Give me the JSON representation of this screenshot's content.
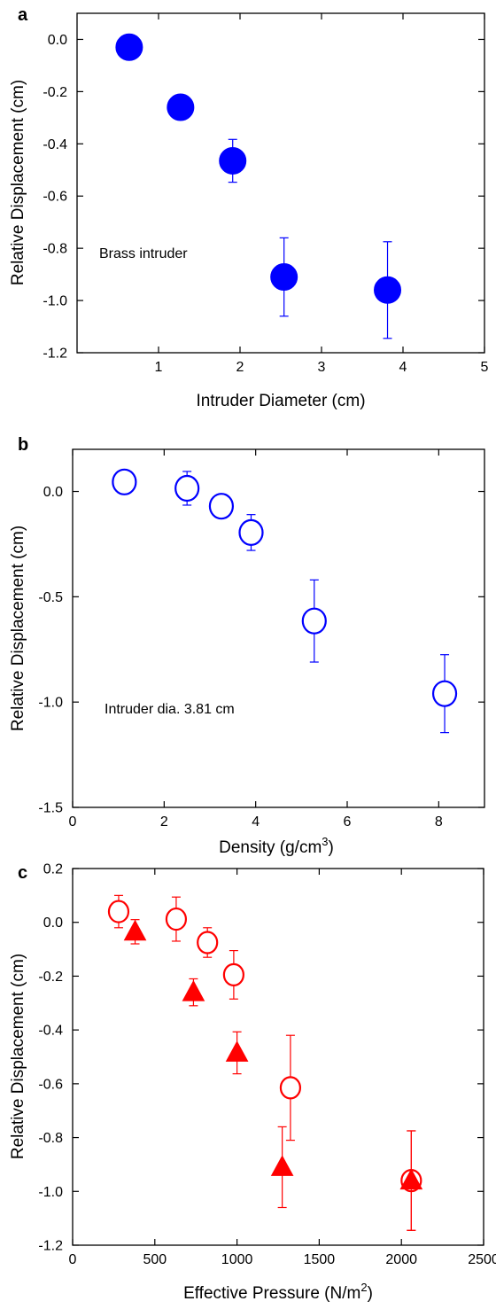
{
  "chart_data": [
    {
      "type": "scatter",
      "panel_label": "a",
      "xlabel": "Intruder Diameter (cm)",
      "ylabel": "Relative Displacement (cm)",
      "xlim": [
        0,
        5
      ],
      "ylim": [
        -1.2,
        0.1
      ],
      "xticks": [
        1,
        2,
        3,
        4,
        5
      ],
      "xtick_labels": [
        "1",
        "2",
        "3",
        "4",
        "5"
      ],
      "yticks": [
        0.0,
        -0.2,
        -0.4,
        -0.6,
        -0.8,
        -1.0,
        -1.2
      ],
      "ytick_labels": [
        "0.0",
        "-0.2",
        "-0.4",
        "-0.6",
        "-0.8",
        "-1.0",
        "-1.2"
      ],
      "annotation": "Brass intruder",
      "grid": false,
      "series": [
        {
          "marker": "filled-circle",
          "color": "#0000ff",
          "points": [
            {
              "x": 0.64,
              "y": -0.03,
              "err": null
            },
            {
              "x": 1.27,
              "y": -0.26,
              "err": null
            },
            {
              "x": 1.91,
              "y": -0.465,
              "err": 0.082
            },
            {
              "x": 2.54,
              "y": -0.91,
              "err": 0.15
            },
            {
              "x": 3.81,
              "y": -0.96,
              "err": 0.185
            }
          ]
        }
      ]
    },
    {
      "type": "scatter",
      "panel_label": "b",
      "xlabel": "Density (g/cm",
      "xlabel_sup": "3",
      "xlabel_end": ")",
      "ylabel": "Relative Displacement (cm)",
      "xlim": [
        0,
        9
      ],
      "ylim": [
        -1.5,
        0.2
      ],
      "xticks": [
        0,
        2,
        4,
        6,
        8
      ],
      "xtick_labels": [
        "0",
        "2",
        "4",
        "6",
        "8"
      ],
      "yticks": [
        0.0,
        -0.5,
        -1.0,
        -1.5
      ],
      "ytick_labels": [
        "0.0",
        "-0.5",
        "-1.0",
        "-1.5"
      ],
      "annotation": "Intruder dia. 3.81 cm",
      "grid": false,
      "series": [
        {
          "marker": "open-circle",
          "color": "#0000ff",
          "points": [
            {
              "x": 1.13,
              "y": 0.045,
              "err": null
            },
            {
              "x": 2.5,
              "y": 0.015,
              "err": 0.08
            },
            {
              "x": 3.25,
              "y": -0.07,
              "err": null
            },
            {
              "x": 3.9,
              "y": -0.195,
              "err": 0.085
            },
            {
              "x": 5.28,
              "y": -0.615,
              "err": 0.195
            },
            {
              "x": 8.13,
              "y": -0.96,
              "err": 0.185
            }
          ]
        }
      ]
    },
    {
      "type": "scatter",
      "panel_label": "c",
      "xlabel": "Effective Pressure (N/m",
      "xlabel_sup": "2",
      "xlabel_end": ")",
      "ylabel": "Relative Displacement (cm)",
      "xlim": [
        0,
        2500
      ],
      "ylim": [
        -1.2,
        0.2
      ],
      "xticks": [
        0,
        500,
        1000,
        1500,
        2000,
        2500
      ],
      "xtick_labels": [
        "0",
        "500",
        "1000",
        "1500",
        "2000",
        "2500"
      ],
      "yticks": [
        0.2,
        0.0,
        -0.2,
        -0.4,
        -0.6,
        -0.8,
        -1.0,
        -1.2
      ],
      "ytick_labels": [
        "0.2",
        "0.0",
        "-0.2",
        "-0.4",
        "-0.6",
        "-0.8",
        "-1.0",
        "-1.2"
      ],
      "grid": false,
      "series": [
        {
          "marker": "open-circle",
          "color": "#ff0000",
          "points": [
            {
              "x": 280,
              "y": 0.04,
              "err": 0.06
            },
            {
              "x": 630,
              "y": 0.012,
              "err": 0.082
            },
            {
              "x": 820,
              "y": -0.075,
              "err": 0.055
            },
            {
              "x": 980,
              "y": -0.195,
              "err": 0.09
            },
            {
              "x": 1325,
              "y": -0.615,
              "err": 0.195
            },
            {
              "x": 2060,
              "y": -0.96,
              "err": 0.185
            }
          ]
        },
        {
          "marker": "filled-triangle",
          "color": "#ff0000",
          "points": [
            {
              "x": 380,
              "y": -0.035,
              "err": 0.045
            },
            {
              "x": 735,
              "y": -0.26,
              "err": 0.05
            },
            {
              "x": 1000,
              "y": -0.485,
              "err": 0.078
            },
            {
              "x": 1275,
              "y": -0.91,
              "err": 0.15
            },
            {
              "x": 2060,
              "y": -0.96,
              "err": 0.185
            }
          ]
        }
      ]
    }
  ]
}
